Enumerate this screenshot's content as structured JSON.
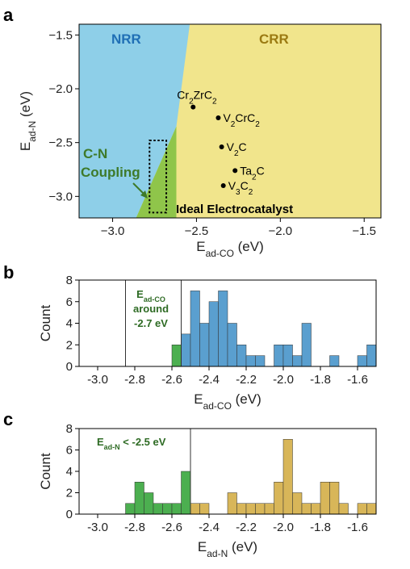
{
  "colors": {
    "nrr": "#8ecfe8",
    "crr": "#f1e58c",
    "coupling": "#8fc54a",
    "hist_blue": "#5a9fcf",
    "hist_green": "#4caf50",
    "hist_gold": "#d8b659",
    "nrr_text": "#1f6fb5",
    "crr_text": "#9b7a12",
    "coupling_text": "#3e7a2a",
    "ann_text": "#2e6b24"
  },
  "chart_data": [
    {
      "panel": "a",
      "type": "scatter",
      "xlabel": "E",
      "xlabel_sub": "ad-CO",
      "xlabel_unit": " (eV)",
      "ylabel": "E",
      "ylabel_sub": "ad-N",
      "ylabel_unit": " (eV)",
      "xlim": [
        -3.2,
        -1.4
      ],
      "ylim": [
        -3.2,
        -1.4
      ],
      "xticks": [
        -3.0,
        -2.5,
        -2.0,
        -1.5
      ],
      "yticks": [
        -1.5,
        -2.0,
        -2.5,
        -3.0
      ],
      "xtick_labels": [
        "−3.0",
        "−2.5",
        "−2.0",
        "−1.5"
      ],
      "ytick_labels": [
        "−1.5",
        "−2.0",
        "−2.5",
        "−3.0"
      ],
      "regions": {
        "nrr_label": "NRR",
        "crr_label": "CRR",
        "coupling_label_1": "C-N",
        "coupling_label_2": "Coupling",
        "boundary": [
          [
            -3.2,
            -3.2
          ],
          [
            -2.86,
            -3.2
          ],
          [
            -2.62,
            -2.35
          ],
          [
            -2.54,
            -1.4
          ],
          [
            -3.2,
            -1.4
          ]
        ],
        "coupling_triangle": [
          [
            -2.86,
            -3.2
          ],
          [
            -2.62,
            -3.2
          ],
          [
            -2.62,
            -2.35
          ]
        ]
      },
      "ideal_box": {
        "x": [
          -2.78,
          -2.68
        ],
        "y": [
          -3.15,
          -2.48
        ],
        "label": "Ideal Electrocatalyst"
      },
      "points": [
        {
          "name": "Cr",
          "s1": "2",
          "name2": "ZrC",
          "s2": "2",
          "x": -2.52,
          "y": -2.17
        },
        {
          "name": "V",
          "s1": "2",
          "name2": "CrC",
          "s2": "2",
          "x": -2.37,
          "y": -2.27
        },
        {
          "name": "V",
          "s1": "2",
          "name2": "C",
          "s2": "",
          "x": -2.35,
          "y": -2.54
        },
        {
          "name": "Ta",
          "s1": "2",
          "name2": "C",
          "s2": "",
          "x": -2.27,
          "y": -2.76
        },
        {
          "name": "V",
          "s1": "3",
          "name2": "C",
          "s2": "2",
          "x": -2.34,
          "y": -2.9
        }
      ]
    },
    {
      "panel": "b",
      "type": "bar",
      "xlabel": "E",
      "xlabel_sub": "ad-CO",
      "xlabel_unit": " (eV)",
      "ylabel": "Count",
      "xlim": [
        -3.1,
        -1.5
      ],
      "ylim": [
        0,
        8
      ],
      "xticks": [
        -3.0,
        -2.8,
        -2.6,
        -2.4,
        -2.2,
        -2.0,
        -1.8,
        -1.6
      ],
      "xtick_labels": [
        "-3.0",
        "-2.8",
        "-2.6",
        "-2.4",
        "-2.2",
        "-2.0",
        "-1.8",
        "-1.6"
      ],
      "yticks": [
        0,
        2,
        4,
        6,
        8
      ],
      "bin_width": 0.05,
      "bin_starts": [
        -2.6,
        -2.55,
        -2.5,
        -2.45,
        -2.4,
        -2.35,
        -2.3,
        -2.25,
        -2.2,
        -2.15,
        -2.1,
        -2.05,
        -2.0,
        -1.95,
        -1.9,
        -1.85,
        -1.8,
        -1.75,
        -1.7,
        -1.65,
        -1.6,
        -1.55
      ],
      "counts": [
        2,
        3,
        7,
        4,
        6,
        7,
        4,
        2,
        1,
        1,
        0,
        2,
        2,
        1,
        4,
        0,
        0,
        1,
        0,
        0,
        1,
        2
      ],
      "green_bins": [
        0
      ],
      "vlines": [
        -2.85,
        -2.55
      ],
      "annotation_line1": "E",
      "annotation_sub": "ad-CO",
      "annotation_line2": "around",
      "annotation_line3": "-2.7 eV"
    },
    {
      "panel": "c",
      "type": "bar",
      "xlabel": "E",
      "xlabel_sub": "ad-N",
      "xlabel_unit": " (eV)",
      "ylabel": "Count",
      "xlim": [
        -3.1,
        -1.5
      ],
      "ylim": [
        0,
        8
      ],
      "xticks": [
        -3.0,
        -2.8,
        -2.6,
        -2.4,
        -2.2,
        -2.0,
        -1.8,
        -1.6
      ],
      "xtick_labels": [
        "-3.0",
        "-2.8",
        "-2.6",
        "-2.4",
        "-2.2",
        "-2.0",
        "-1.8",
        "-1.6"
      ],
      "yticks": [
        0,
        2,
        4,
        6,
        8
      ],
      "bin_width": 0.05,
      "bin_starts": [
        -2.85,
        -2.8,
        -2.75,
        -2.7,
        -2.65,
        -2.6,
        -2.55,
        -2.5,
        -2.45,
        -2.4,
        -2.35,
        -2.3,
        -2.25,
        -2.2,
        -2.15,
        -2.1,
        -2.05,
        -2.0,
        -1.95,
        -1.9,
        -1.85,
        -1.8,
        -1.75,
        -1.7,
        -1.65,
        -1.6,
        -1.55
      ],
      "counts": [
        1,
        3,
        2,
        1,
        1,
        1,
        4,
        1,
        1,
        0,
        0,
        2,
        1,
        1,
        1,
        1,
        3,
        7,
        2,
        1,
        1,
        3,
        3,
        1,
        0,
        1,
        1
      ],
      "green_count": 7,
      "vlines": [
        -2.5
      ],
      "annotation_line1": "E",
      "annotation_sub": "ad-N",
      "annotation_line2": " < -2.5 eV"
    }
  ]
}
